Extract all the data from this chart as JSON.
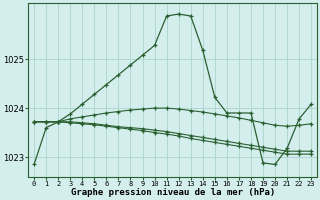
{
  "title": "Graphe pression niveau de la mer (hPa)",
  "bg_color": "#d4eeee",
  "grid_color": "#b0d8d0",
  "line_color": "#2a6030",
  "x_ticks": [
    0,
    1,
    2,
    3,
    4,
    5,
    6,
    7,
    8,
    9,
    10,
    11,
    12,
    13,
    14,
    15,
    16,
    17,
    18,
    19,
    20,
    21,
    22,
    23
  ],
  "ylim": [
    1022.6,
    1026.15
  ],
  "yticks": [
    1023,
    1024,
    1025
  ],
  "series": [
    [
      1022.85,
      1023.6,
      1023.72,
      1023.88,
      1024.08,
      1024.28,
      1024.48,
      1024.68,
      1024.88,
      1025.08,
      1025.28,
      1025.88,
      1025.92,
      1025.88,
      1025.18,
      1024.22,
      1023.9,
      1023.9,
      1023.9,
      1022.88,
      1022.85,
      1023.18,
      1023.78,
      1024.08
    ],
    [
      1023.72,
      1023.72,
      1023.72,
      1023.78,
      1023.82,
      1023.86,
      1023.9,
      1023.93,
      1023.96,
      1023.98,
      1024.0,
      1024.0,
      1023.98,
      1023.95,
      1023.92,
      1023.88,
      1023.84,
      1023.8,
      1023.75,
      1023.7,
      1023.65,
      1023.63,
      1023.65,
      1023.68
    ],
    [
      1023.72,
      1023.72,
      1023.72,
      1023.72,
      1023.7,
      1023.68,
      1023.65,
      1023.62,
      1023.6,
      1023.58,
      1023.55,
      1023.52,
      1023.48,
      1023.44,
      1023.4,
      1023.36,
      1023.32,
      1023.28,
      1023.24,
      1023.2,
      1023.16,
      1023.12,
      1023.12,
      1023.12
    ],
    [
      1023.72,
      1023.72,
      1023.72,
      1023.7,
      1023.68,
      1023.66,
      1023.63,
      1023.6,
      1023.57,
      1023.54,
      1023.5,
      1023.47,
      1023.43,
      1023.38,
      1023.34,
      1023.3,
      1023.26,
      1023.22,
      1023.18,
      1023.14,
      1023.1,
      1023.06,
      1023.06,
      1023.06
    ]
  ]
}
